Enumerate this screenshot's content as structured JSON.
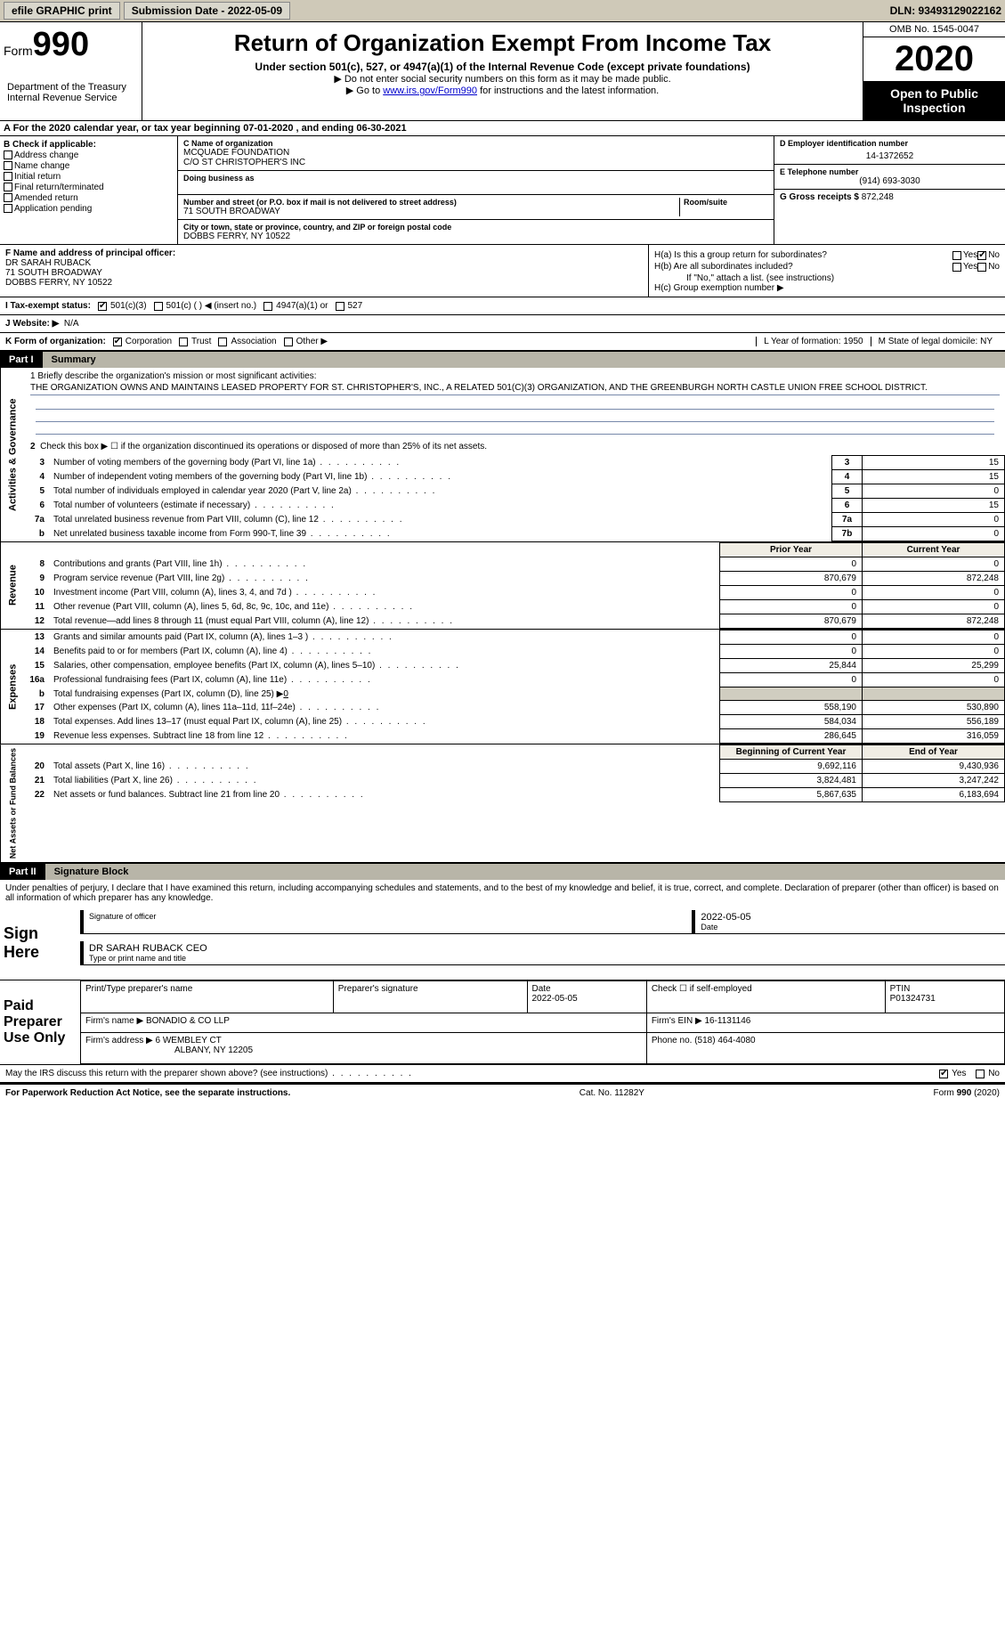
{
  "topbar": {
    "btn1": "efile GRAPHIC print",
    "btn2": "Submission Date - 2022-05-09",
    "dln": "DLN: 93493129022162"
  },
  "header": {
    "form_prefix": "Form",
    "form_num": "990",
    "dept": "Department of the Treasury\nInternal Revenue Service",
    "title": "Return of Organization Exempt From Income Tax",
    "sub1": "Under section 501(c), 527, or 4947(a)(1) of the Internal Revenue Code (except private foundations)",
    "sub2": "▶ Do not enter social security numbers on this form as it may be made public.",
    "sub3_pre": "▶ Go to ",
    "sub3_link": "www.irs.gov/Form990",
    "sub3_post": " for instructions and the latest information.",
    "omb": "OMB No. 1545-0047",
    "year": "2020",
    "inspect": "Open to Public Inspection"
  },
  "section_a": "A For the 2020 calendar year, or tax year beginning 07-01-2020    , and ending 06-30-2021",
  "col_b": {
    "label": "B Check if applicable:",
    "opts": [
      "Address change",
      "Name change",
      "Initial return",
      "Final return/terminated",
      "Amended return",
      "Application pending"
    ]
  },
  "org": {
    "c_label": "C Name of organization",
    "name": "MCQUADE FOUNDATION",
    "care_of": "C/O ST CHRISTOPHER'S INC",
    "dba_label": "Doing business as",
    "addr_label": "Number and street (or P.O. box if mail is not delivered to street address)",
    "room_label": "Room/suite",
    "addr": "71 SOUTH BROADWAY",
    "city_label": "City or town, state or province, country, and ZIP or foreign postal code",
    "city": "DOBBS FERRY, NY  10522"
  },
  "right_col": {
    "d_label": "D Employer identification number",
    "ein": "14-1372652",
    "e_label": "E Telephone number",
    "phone": "(914) 693-3030",
    "g_label": "G Gross receipts $",
    "gross": "872,248"
  },
  "officer": {
    "f_label": "F Name and address of principal officer:",
    "name": "DR SARAH RUBACK",
    "addr1": "71 SOUTH BROADWAY",
    "addr2": "DOBBS FERRY, NY  10522"
  },
  "h_section": {
    "ha": "H(a)  Is this a group return for subordinates?",
    "hb": "H(b)  Are all subordinates included?",
    "hb_note": "If \"No,\" attach a list. (see instructions)",
    "hc": "H(c)  Group exemption number ▶"
  },
  "tax_status": {
    "i_label": "I   Tax-exempt status:",
    "opt1": "501(c)(3)",
    "opt2": "501(c) (  ) ◀ (insert no.)",
    "opt3": "4947(a)(1) or",
    "opt4": "527"
  },
  "website": {
    "label": "J   Website: ▶",
    "val": "N/A"
  },
  "k_line": {
    "label": "K Form of organization:",
    "opts": [
      "Corporation",
      "Trust",
      "Association",
      "Other ▶"
    ],
    "l": "L Year of formation: 1950",
    "m": "M State of legal domicile: NY"
  },
  "part1": {
    "num": "Part I",
    "title": "Summary"
  },
  "mission": {
    "q1": "1   Briefly describe the organization's mission or most significant activities:",
    "text": "THE ORGANIZATION OWNS AND MAINTAINS LEASED PROPERTY FOR ST. CHRISTOPHER'S, INC., A RELATED 501(C)(3) ORGANIZATION, AND THE GREENBURGH NORTH CASTLE UNION FREE SCHOOL DISTRICT."
  },
  "governance": {
    "q2": "Check this box ▶ ☐  if the organization discontinued its operations or disposed of more than 25% of its net assets.",
    "rows": [
      {
        "n": "3",
        "t": "Number of voting members of the governing body (Part VI, line 1a)",
        "b": "3",
        "v": "15"
      },
      {
        "n": "4",
        "t": "Number of independent voting members of the governing body (Part VI, line 1b)",
        "b": "4",
        "v": "15"
      },
      {
        "n": "5",
        "t": "Total number of individuals employed in calendar year 2020 (Part V, line 2a)",
        "b": "5",
        "v": "0"
      },
      {
        "n": "6",
        "t": "Total number of volunteers (estimate if necessary)",
        "b": "6",
        "v": "15"
      },
      {
        "n": "7a",
        "t": "Total unrelated business revenue from Part VIII, column (C), line 12",
        "b": "7a",
        "v": "0"
      },
      {
        "n": "b",
        "t": "Net unrelated business taxable income from Form 990-T, line 39",
        "b": "7b",
        "v": "0"
      }
    ]
  },
  "col_headers": {
    "py": "Prior Year",
    "cy": "Current Year"
  },
  "revenue": {
    "label": "Revenue",
    "rows": [
      {
        "n": "8",
        "t": "Contributions and grants (Part VIII, line 1h)",
        "py": "0",
        "cy": "0"
      },
      {
        "n": "9",
        "t": "Program service revenue (Part VIII, line 2g)",
        "py": "870,679",
        "cy": "872,248"
      },
      {
        "n": "10",
        "t": "Investment income (Part VIII, column (A), lines 3, 4, and 7d )",
        "py": "0",
        "cy": "0"
      },
      {
        "n": "11",
        "t": "Other revenue (Part VIII, column (A), lines 5, 6d, 8c, 9c, 10c, and 11e)",
        "py": "0",
        "cy": "0"
      },
      {
        "n": "12",
        "t": "Total revenue—add lines 8 through 11 (must equal Part VIII, column (A), line 12)",
        "py": "870,679",
        "cy": "872,248"
      }
    ]
  },
  "expenses": {
    "label": "Expenses",
    "rows": [
      {
        "n": "13",
        "t": "Grants and similar amounts paid (Part IX, column (A), lines 1–3 )",
        "py": "0",
        "cy": "0"
      },
      {
        "n": "14",
        "t": "Benefits paid to or for members (Part IX, column (A), line 4)",
        "py": "0",
        "cy": "0"
      },
      {
        "n": "15",
        "t": "Salaries, other compensation, employee benefits (Part IX, column (A), lines 5–10)",
        "py": "25,844",
        "cy": "25,299"
      },
      {
        "n": "16a",
        "t": "Professional fundraising fees (Part IX, column (A), line 11e)",
        "py": "0",
        "cy": "0"
      }
    ],
    "b_row": {
      "n": "b",
      "t": "Total fundraising expenses (Part IX, column (D), line 25) ▶",
      "v": "0"
    },
    "rows2": [
      {
        "n": "17",
        "t": "Other expenses (Part IX, column (A), lines 11a–11d, 11f–24e)",
        "py": "558,190",
        "cy": "530,890"
      },
      {
        "n": "18",
        "t": "Total expenses. Add lines 13–17 (must equal Part IX, column (A), line 25)",
        "py": "584,034",
        "cy": "556,189"
      },
      {
        "n": "19",
        "t": "Revenue less expenses. Subtract line 18 from line 12",
        "py": "286,645",
        "cy": "316,059"
      }
    ]
  },
  "net_headers": {
    "beg": "Beginning of Current Year",
    "end": "End of Year"
  },
  "netassets": {
    "label": "Net Assets or Fund Balances",
    "rows": [
      {
        "n": "20",
        "t": "Total assets (Part X, line 16)",
        "py": "9,692,116",
        "cy": "9,430,936"
      },
      {
        "n": "21",
        "t": "Total liabilities (Part X, line 26)",
        "py": "3,824,481",
        "cy": "3,247,242"
      },
      {
        "n": "22",
        "t": "Net assets or fund balances. Subtract line 21 from line 20",
        "py": "5,867,635",
        "cy": "6,183,694"
      }
    ]
  },
  "part2": {
    "num": "Part II",
    "title": "Signature Block"
  },
  "sig": {
    "declaration": "Under penalties of perjury, I declare that I have examined this return, including accompanying schedules and statements, and to the best of my knowledge and belief, it is true, correct, and complete. Declaration of preparer (other than officer) is based on all information of which preparer has any knowledge.",
    "sign_here": "Sign Here",
    "sig_officer": "Signature of officer",
    "date": "2022-05-05",
    "date_lbl": "Date",
    "name": "DR SARAH RUBACK CEO",
    "name_lbl": "Type or print name and title"
  },
  "preparer": {
    "label": "Paid Preparer Use Only",
    "h1": "Print/Type preparer's name",
    "h2": "Preparer's signature",
    "h3": "Date",
    "h3v": "2022-05-05",
    "h4": "Check ☐ if self-employed",
    "h5": "PTIN",
    "ptin": "P01324731",
    "firm_lbl": "Firm's name    ▶",
    "firm": "BONADIO & CO LLP",
    "ein_lbl": "Firm's EIN ▶",
    "ein": "16-1131146",
    "addr_lbl": "Firm's address ▶",
    "addr": "6 WEMBLEY CT",
    "addr2": "ALBANY, NY  12205",
    "phone_lbl": "Phone no.",
    "phone": "(518) 464-4080"
  },
  "irs_q": "May the IRS discuss this return with the preparer shown above? (see instructions)",
  "footer": {
    "left": "For Paperwork Reduction Act Notice, see the separate instructions.",
    "mid": "Cat. No. 11282Y",
    "right": "Form 990 (2020)"
  }
}
